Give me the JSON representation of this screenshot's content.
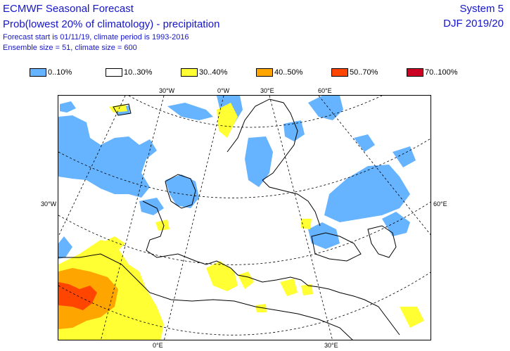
{
  "header": {
    "title": "ECMWF Seasonal Forecast",
    "subtitle": "Prob(lowest 20% of climatology) - precipitation",
    "forecast_info": "Forecast start is 01/11/19, climate period is 1993-2016",
    "ensemble_info": "Ensemble size = 51, climate size = 600",
    "system": "System 5",
    "season": "DJF 2019/20"
  },
  "legend": [
    {
      "label": "0..10%",
      "color": "#66b3ff"
    },
    {
      "label": "10..30%",
      "color": "#ffffff"
    },
    {
      "label": "30..40%",
      "color": "#ffff33"
    },
    {
      "label": "40..50%",
      "color": "#ffa500"
    },
    {
      "label": "50..70%",
      "color": "#ff4500"
    },
    {
      "label": "70..100%",
      "color": "#cc0022"
    }
  ],
  "map": {
    "projection": "polar stereographic",
    "top_longitude_labels": [
      "30°W",
      "0°W",
      "30°E",
      "60°E"
    ],
    "bottom_longitude_labels": [
      "0°E",
      "30°E"
    ],
    "left_labels": [
      "30°W"
    ],
    "right_labels": [
      "60°E"
    ]
  }
}
